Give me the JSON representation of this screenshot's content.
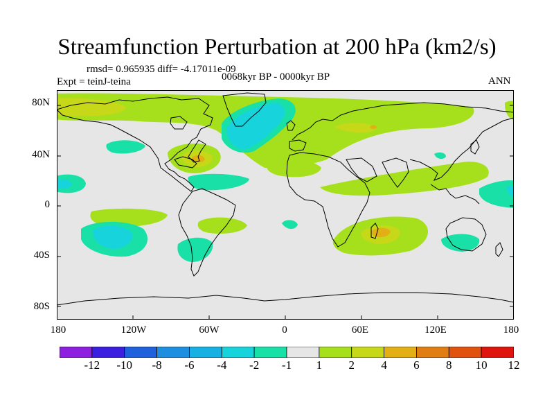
{
  "title": "Streamfunction Perturbation at 200 hPa (km2/s)",
  "rmsd_line": "rmsd= 0.965935 diff= -4.17011e-09",
  "experiment": "Expt = teinJ-teina",
  "period": "0068kyr BP - 0000kyr BP",
  "season": "ANN",
  "y_ticks": [
    "80N",
    "40N",
    "0",
    "40S",
    "80S"
  ],
  "x_ticks": [
    "180",
    "120W",
    "60W",
    "0",
    "60E",
    "120E",
    "180"
  ],
  "colorbar": {
    "labels": [
      "-12",
      "-10",
      "-8",
      "-6",
      "-4",
      "-2",
      "-1",
      "1",
      "2",
      "4",
      "6",
      "8",
      "10",
      "12"
    ],
    "colors": [
      "#8c1fe0",
      "#3b1ee0",
      "#1f60dd",
      "#1e8fe0",
      "#16b1e2",
      "#17d4dc",
      "#19e0a6",
      "#e6e6e6",
      "#a6e01d",
      "#c6d818",
      "#e2b014",
      "#e07e14",
      "#e2520f",
      "#e0140f"
    ]
  },
  "map_colors": {
    "background": "#e6e6e6",
    "neg_1": "#19e0a6",
    "neg_2": "#17d4dc",
    "neg_4": "#16b1e2",
    "pos_1": "#a6e01d",
    "pos_2": "#c6d818",
    "pos_4": "#e2b014"
  }
}
